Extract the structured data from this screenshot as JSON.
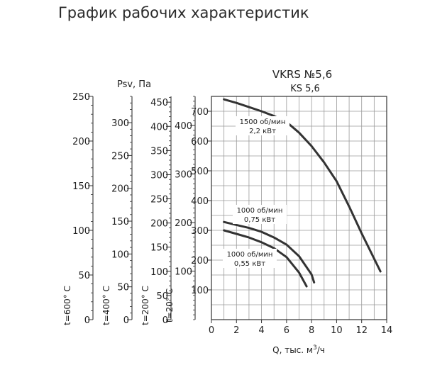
{
  "title": "График рабочих характеристик",
  "chart_data": {
    "type": "line",
    "model": "VKRS №5,6",
    "submodel": "KS 5,6",
    "xlabel_main": "Q, тыс. м",
    "xlabel_sup": "3",
    "xlabel_tail": "/ч",
    "xlim": [
      0,
      14
    ],
    "x_ticks": [
      0,
      2,
      4,
      6,
      8,
      10,
      12,
      14
    ],
    "ylim": [
      0,
      750
    ],
    "y_ticks": [
      100,
      200,
      300,
      400,
      500,
      600,
      700
    ],
    "grid": true,
    "pressure_label": "Psv, Па",
    "temperature_scales": [
      {
        "label": "t=600° C",
        "max": 250,
        "ticks": [
          0,
          50,
          100,
          150,
          200,
          250
        ]
      },
      {
        "label": "t=400° C",
        "max": 340,
        "ticks": [
          0,
          50,
          100,
          150,
          200,
          250,
          300
        ]
      },
      {
        "label": "t=200° C",
        "max": 462,
        "ticks": [
          0,
          50,
          100,
          150,
          200,
          250,
          300,
          350,
          400,
          450
        ]
      },
      {
        "label": "t=20° C",
        "max": 460,
        "ticks": [
          100,
          200,
          300,
          400
        ]
      }
    ],
    "series": [
      {
        "label_line1": "1500 об/мин",
        "label_line2": "2,2 кВт",
        "x": [
          1,
          2,
          3,
          4,
          5,
          6,
          7,
          8,
          9,
          10,
          11,
          12,
          13.5
        ],
        "y": [
          740,
          728,
          714,
          700,
          684,
          664,
          628,
          583,
          528,
          465,
          380,
          290,
          162
        ]
      },
      {
        "label_line1": "1000 об/мин",
        "label_line2": "0,75 кВт",
        "x": [
          1,
          2,
          3,
          4,
          5,
          6,
          7,
          8,
          8.2
        ],
        "y": [
          328,
          318,
          308,
          295,
          276,
          252,
          213,
          152,
          125
        ]
      },
      {
        "label_line1": "1000 об/мин",
        "label_line2": "0,55 кВт",
        "x": [
          1,
          2,
          3,
          4,
          5,
          6,
          7,
          7.6
        ],
        "y": [
          300,
          288,
          276,
          260,
          240,
          210,
          158,
          112
        ]
      }
    ]
  }
}
